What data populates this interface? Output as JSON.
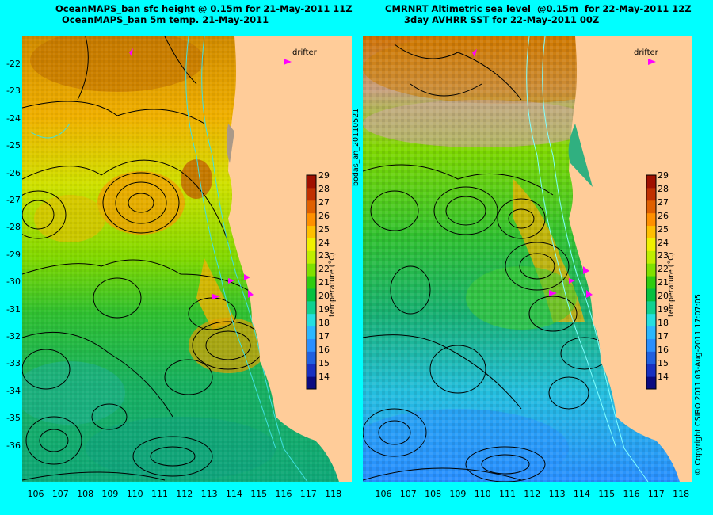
{
  "left_panel": {
    "title_line1": "OceanMAPS_ban sfc height @ 0.15m for 21-May-2011 11Z",
    "title_line2": "OceanMAPS_ban 5m temp. 21-May-2011"
  },
  "right_panel": {
    "title_line1": "CMRNRT Altimetric sea level  @0.15m  for 22-May-2011 12Z",
    "title_line2": "3day AVHRR SST for 22-May-2011 00Z"
  },
  "legend": {
    "drifter_label": "drifter",
    "colorbar_label": "temperature (°C)"
  },
  "colorbar": {
    "ticks": [
      "29",
      "28",
      "27",
      "26",
      "25",
      "24",
      "23",
      "22",
      "21",
      "20",
      "19",
      "18",
      "17",
      "16",
      "15",
      "14"
    ],
    "min": 13.5,
    "max": 29.5,
    "colors": [
      "#0a0a80",
      "#1830c0",
      "#2060e0",
      "#2a8fff",
      "#2bb7ff",
      "#25dfe0",
      "#10d090",
      "#05c040",
      "#30cc10",
      "#80e000",
      "#c0ee00",
      "#f0f000",
      "#ffc000",
      "#ff9000",
      "#e06000",
      "#c03000",
      "#a01000"
    ]
  },
  "axes": {
    "lat_ticks": [
      "-22",
      "-23",
      "-24",
      "-25",
      "-26",
      "-27",
      "-28",
      "-29",
      "-30",
      "-31",
      "-32",
      "-33",
      "-34",
      "-35",
      "-36"
    ],
    "lon_ticks": [
      "106",
      "107",
      "108",
      "109",
      "110",
      "111",
      "112",
      "113",
      "114",
      "115",
      "116",
      "117",
      "118"
    ]
  },
  "side_label": "bodas_an_20110521",
  "copyright": "© Copyright CSIRO 2011   03-Aug-2011 17:07:05",
  "land_color": "#ffcc99",
  "ocean_background": "#22c030"
}
